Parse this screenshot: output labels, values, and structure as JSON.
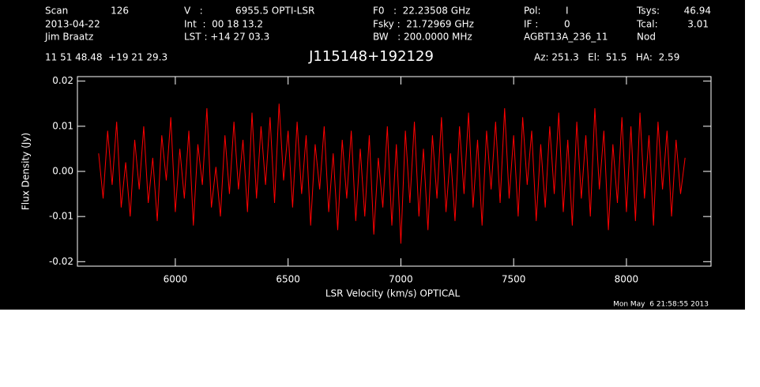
{
  "chart_data": {
    "type": "line",
    "title": "J115148+192129",
    "header": [
      "Scan",
      "126",
      "2013-04-22",
      "Jim Braatz",
      "V   :",
      "6955.5 OPTI-LSR",
      "Int  :  00 18 13.2",
      "LST : +14 27 03.3",
      "F0   :  22.23508 GHz",
      "Fsky :  21.72969 GHz",
      "BW   : 200.0000 MHz",
      "Pol:",
      "I",
      "IF :",
      "0",
      "AGBT13A_236_11",
      "Tsys:",
      "46.94",
      "Tcal:",
      "3.01",
      "Nod",
      "11 51 48.48  +19 21 29.3",
      "Az: 251.3   El:  51.5   HA:  2.59"
    ],
    "xlabel": "LSR Velocity (km/s) OPTICAL",
    "ylabel": "Flux Density (Jy)",
    "timestamp": "Mon May  6 21:58:55 2013",
    "xlim": [
      5566,
      8375
    ],
    "ylim": [
      -0.021,
      0.021
    ],
    "xticks": [
      6000,
      6500,
      7000,
      7500,
      8000
    ],
    "yticks": [
      0.02,
      0.01,
      {
        "value": 0,
        "label": "0.00"
      },
      -0.01,
      -0.02
    ],
    "x": [
      5660,
      5680,
      5700,
      5720,
      5740,
      5760,
      5780,
      5800,
      5820,
      5840,
      5860,
      5880,
      5900,
      5920,
      5940,
      5960,
      5980,
      6000,
      6020,
      6040,
      6060,
      6080,
      6100,
      6120,
      6140,
      6160,
      6180,
      6200,
      6220,
      6240,
      6260,
      6280,
      6300,
      6320,
      6340,
      6360,
      6380,
      6400,
      6420,
      6440,
      6460,
      6480,
      6500,
      6520,
      6540,
      6560,
      6580,
      6600,
      6620,
      6640,
      6660,
      6680,
      6700,
      6720,
      6740,
      6760,
      6780,
      6800,
      6820,
      6840,
      6860,
      6880,
      6900,
      6920,
      6940,
      6960,
      6980,
      7000,
      7020,
      7040,
      7060,
      7080,
      7100,
      7120,
      7140,
      7160,
      7180,
      7200,
      7220,
      7240,
      7260,
      7280,
      7300,
      7320,
      7340,
      7360,
      7380,
      7400,
      7420,
      7440,
      7460,
      7480,
      7500,
      7520,
      7540,
      7560,
      7580,
      7600,
      7620,
      7640,
      7660,
      7680,
      7700,
      7720,
      7740,
      7760,
      7780,
      7800,
      7820,
      7840,
      7860,
      7880,
      7900,
      7920,
      7940,
      7960,
      7980,
      8000,
      8020,
      8040,
      8060,
      8080,
      8100,
      8120,
      8140,
      8160,
      8180,
      8200,
      8220,
      8240,
      8260
    ],
    "series": [
      {
        "color": "#ff0000",
        "values": [
          0.004,
          -0.006,
          0.009,
          -0.003,
          0.011,
          -0.008,
          0.002,
          -0.01,
          0.007,
          -0.004,
          0.01,
          -0.007,
          0.003,
          -0.011,
          0.008,
          -0.002,
          0.012,
          -0.009,
          0.005,
          -0.006,
          0.009,
          -0.012,
          0.006,
          -0.003,
          0.014,
          -0.008,
          0.001,
          -0.01,
          0.008,
          -0.005,
          0.011,
          -0.004,
          0.007,
          -0.009,
          0.013,
          -0.006,
          0.01,
          -0.003,
          0.012,
          -0.007,
          0.015,
          -0.002,
          0.009,
          -0.008,
          0.011,
          -0.005,
          0.008,
          -0.012,
          0.006,
          -0.004,
          0.01,
          -0.009,
          0.004,
          -0.013,
          0.007,
          -0.006,
          0.009,
          -0.011,
          0.005,
          -0.01,
          0.008,
          -0.014,
          0.003,
          -0.008,
          0.01,
          -0.012,
          0.006,
          -0.016,
          0.009,
          -0.007,
          0.011,
          -0.01,
          0.005,
          -0.013,
          0.008,
          -0.006,
          0.012,
          -0.009,
          0.004,
          -0.011,
          0.01,
          -0.005,
          0.013,
          -0.008,
          0.007,
          -0.012,
          0.009,
          -0.004,
          0.011,
          -0.007,
          0.014,
          -0.006,
          0.008,
          -0.01,
          0.012,
          -0.003,
          0.009,
          -0.011,
          0.006,
          -0.008,
          0.01,
          -0.005,
          0.013,
          -0.009,
          0.007,
          -0.012,
          0.011,
          -0.006,
          0.008,
          -0.01,
          0.014,
          -0.004,
          0.009,
          -0.013,
          0.006,
          -0.007,
          0.012,
          -0.009,
          0.01,
          -0.011,
          0.013,
          -0.006,
          0.008,
          -0.012,
          0.011,
          -0.004,
          0.009,
          -0.01,
          0.007,
          -0.005,
          0.003
        ]
      }
    ]
  }
}
